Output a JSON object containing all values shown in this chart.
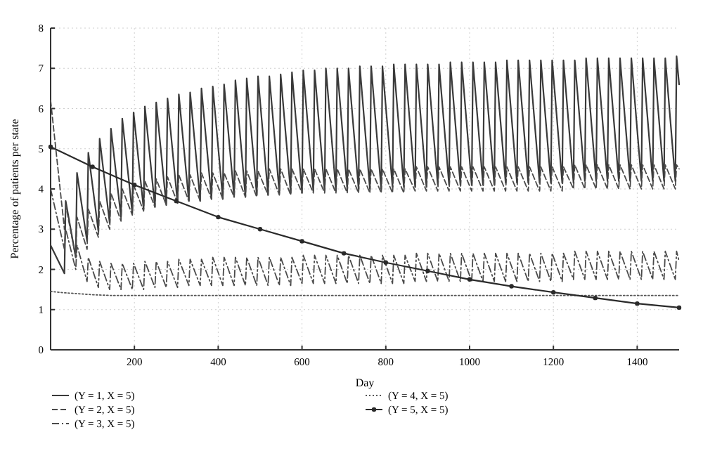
{
  "chart_data": {
    "type": "line",
    "xlabel": "Day",
    "ylabel": "Percentage of patients per state",
    "xlim": [
      0,
      1500
    ],
    "ylim": [
      0,
      8
    ],
    "xticks": [
      200,
      400,
      600,
      800,
      1000,
      1200,
      1400
    ],
    "yticks": [
      0,
      1,
      2,
      3,
      4,
      5,
      6,
      7,
      8
    ],
    "grid": true,
    "legend": "bottom",
    "marker": "none",
    "x": [
      0,
      33,
      36,
      60,
      63,
      87,
      90,
      114,
      117,
      141,
      144,
      168,
      171,
      195,
      198,
      222,
      225,
      249,
      252,
      276,
      279,
      303,
      306,
      330,
      333,
      357,
      360,
      384,
      387,
      411,
      414,
      438,
      441,
      465,
      468,
      492,
      495,
      519,
      522,
      546,
      549,
      573,
      576,
      600,
      603,
      627,
      630,
      654,
      657,
      681,
      684,
      708,
      711,
      735,
      738,
      762,
      765,
      789,
      792,
      816,
      819,
      843,
      846,
      870,
      873,
      897,
      900,
      924,
      927,
      951,
      954,
      978,
      981,
      1005,
      1008,
      1032,
      1035,
      1059,
      1062,
      1086,
      1089,
      1113,
      1116,
      1140,
      1143,
      1167,
      1170,
      1194,
      1197,
      1221,
      1224,
      1248,
      1251,
      1275,
      1278,
      1302,
      1305,
      1329,
      1332,
      1356,
      1359,
      1383,
      1386,
      1410,
      1413,
      1437,
      1440,
      1464,
      1467,
      1491,
      1494,
      1500
    ],
    "series": [
      {
        "name": "(Y = 1, X = 5)",
        "color": "#3a3a3a",
        "line_style": "solid",
        "values": [
          2.6,
          1.9,
          3.7,
          2.3,
          4.4,
          2.7,
          4.9,
          2.95,
          5.25,
          3.15,
          5.5,
          3.3,
          5.75,
          3.4,
          5.9,
          3.5,
          6.05,
          3.55,
          6.15,
          3.6,
          6.25,
          3.65,
          6.35,
          3.7,
          6.4,
          3.7,
          6.5,
          3.75,
          6.55,
          3.75,
          6.6,
          3.8,
          6.7,
          3.8,
          6.75,
          3.85,
          6.8,
          3.85,
          6.8,
          3.9,
          6.85,
          3.9,
          6.9,
          3.9,
          6.95,
          3.95,
          6.95,
          3.95,
          7.0,
          3.95,
          7.0,
          4.0,
          7.0,
          4.0,
          7.05,
          4.0,
          7.05,
          4.0,
          7.05,
          4.05,
          7.1,
          4.05,
          7.1,
          4.05,
          7.1,
          4.05,
          7.1,
          4.1,
          7.1,
          4.1,
          7.15,
          4.1,
          7.15,
          4.1,
          7.15,
          4.1,
          7.15,
          4.1,
          7.15,
          4.15,
          7.2,
          4.15,
          7.2,
          4.15,
          7.2,
          4.15,
          7.2,
          4.15,
          7.2,
          4.15,
          7.2,
          4.15,
          7.2,
          4.2,
          7.25,
          4.2,
          7.25,
          4.2,
          7.25,
          4.2,
          7.25,
          4.2,
          7.25,
          4.2,
          7.25,
          4.2,
          7.25,
          4.2,
          7.25,
          4.2,
          7.3,
          6.6
        ]
      },
      {
        "name": "(Y = 2, X = 5)",
        "color": "#4a4a4a",
        "line_style": "dashed",
        "values": [
          6.2,
          3.0,
          3.6,
          2.3,
          3.3,
          2.5,
          3.5,
          2.8,
          3.7,
          3.0,
          3.9,
          3.2,
          4.0,
          3.35,
          4.1,
          3.45,
          4.2,
          3.55,
          4.25,
          3.6,
          4.3,
          3.65,
          4.35,
          3.7,
          4.35,
          3.7,
          4.4,
          3.75,
          4.4,
          3.75,
          4.4,
          3.8,
          4.45,
          3.8,
          4.45,
          3.8,
          4.45,
          3.85,
          4.5,
          3.85,
          4.5,
          3.85,
          4.5,
          3.9,
          4.5,
          3.9,
          4.5,
          3.9,
          4.5,
          3.9,
          4.5,
          3.9,
          4.5,
          3.9,
          4.5,
          3.9,
          4.5,
          3.9,
          4.5,
          3.9,
          4.5,
          3.9,
          4.5,
          3.95,
          4.55,
          3.95,
          4.55,
          3.95,
          4.55,
          3.95,
          4.55,
          3.95,
          4.55,
          3.95,
          4.55,
          3.95,
          4.55,
          3.95,
          4.55,
          3.95,
          4.55,
          3.95,
          4.55,
          3.95,
          4.55,
          3.95,
          4.55,
          3.95,
          4.55,
          3.95,
          4.55,
          4.0,
          4.6,
          4.0,
          4.6,
          4.0,
          4.6,
          4.0,
          4.6,
          4.0,
          4.6,
          4.0,
          4.6,
          4.0,
          4.6,
          4.0,
          4.6,
          4.0,
          4.6,
          4.0,
          4.6,
          4.5
        ]
      },
      {
        "name": "(Y = 3, X = 5)",
        "color": "#4a4a4a",
        "line_style": "dashdot",
        "values": [
          4.0,
          2.5,
          3.0,
          2.0,
          2.6,
          1.7,
          2.3,
          1.55,
          2.2,
          1.5,
          2.15,
          1.5,
          2.15,
          1.5,
          2.15,
          1.5,
          2.2,
          1.55,
          2.2,
          1.55,
          2.2,
          1.55,
          2.25,
          1.6,
          2.25,
          1.6,
          2.25,
          1.6,
          2.3,
          1.6,
          2.3,
          1.6,
          2.3,
          1.6,
          2.3,
          1.6,
          2.3,
          1.6,
          2.3,
          1.6,
          2.3,
          1.6,
          2.3,
          1.65,
          2.35,
          1.65,
          2.35,
          1.65,
          2.35,
          1.65,
          2.35,
          1.65,
          2.35,
          1.65,
          2.35,
          1.65,
          2.35,
          1.65,
          2.35,
          1.65,
          2.35,
          1.65,
          2.35,
          1.7,
          2.4,
          1.7,
          2.4,
          1.7,
          2.4,
          1.7,
          2.4,
          1.7,
          2.4,
          1.7,
          2.4,
          1.7,
          2.4,
          1.7,
          2.4,
          1.7,
          2.4,
          1.7,
          2.4,
          1.7,
          2.4,
          1.7,
          2.4,
          1.7,
          2.4,
          1.7,
          2.4,
          1.75,
          2.45,
          1.75,
          2.45,
          1.75,
          2.45,
          1.75,
          2.45,
          1.75,
          2.45,
          1.75,
          2.45,
          1.75,
          2.45,
          1.75,
          2.45,
          1.75,
          2.45,
          1.75,
          2.45,
          2.2
        ]
      },
      {
        "name": "(Y = 4, X = 5)",
        "color": "#555555",
        "line_style": "dotted",
        "x": [
          0,
          30,
          60,
          100,
          150,
          300,
          600,
          900,
          1200,
          1500
        ],
        "values": [
          1.45,
          1.42,
          1.4,
          1.37,
          1.35,
          1.35,
          1.35,
          1.35,
          1.35,
          1.35
        ]
      },
      {
        "name": "(Y = 5, X = 5)",
        "color": "#2a2a2a",
        "line_style": "solid",
        "marker": "circle",
        "x": [
          0,
          100,
          200,
          300,
          400,
          500,
          600,
          700,
          800,
          900,
          1000,
          1100,
          1200,
          1300,
          1400,
          1500
        ],
        "values": [
          5.05,
          4.55,
          4.1,
          3.7,
          3.3,
          3.0,
          2.7,
          2.4,
          2.17,
          1.96,
          1.75,
          1.58,
          1.43,
          1.29,
          1.15,
          1.05
        ]
      }
    ]
  }
}
